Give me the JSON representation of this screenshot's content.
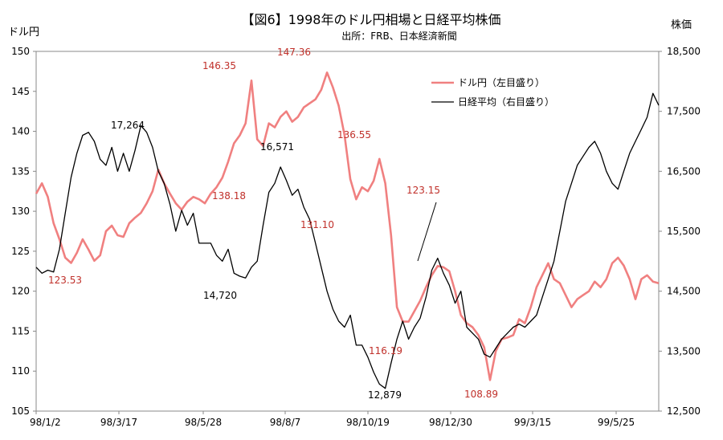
{
  "chart_data": {
    "type": "line",
    "title": "【図6】1998年のドル円相場と日経平均株価",
    "subtitle": "出所：FRB、日本経済新聞",
    "ylabel_left": "ドル円",
    "ylabel_right": "株価",
    "ylim_left": [
      105,
      150
    ],
    "ylim_right": [
      12500,
      18500
    ],
    "yticks_left": [
      "105",
      "110",
      "115",
      "120",
      "125",
      "130",
      "135",
      "140",
      "145",
      "150"
    ],
    "yticks_right": [
      "12,500",
      "13,500",
      "14,500",
      "15,500",
      "16,500",
      "17,500",
      "18,500"
    ],
    "x_ticks": [
      "98/1/2",
      "98/3/17",
      "98/5/28",
      "98/8/7",
      "98/10/19",
      "98/12/30",
      "99/3/15",
      "99/5/25"
    ],
    "grid": false,
    "legend_position": "top-right",
    "series": [
      {
        "name": "ドル円（左目盛り）",
        "axis": "left",
        "color": "#f08080",
        "values": [
          132.2,
          133.5,
          131.8,
          128.5,
          126.5,
          124.2,
          123.53,
          124.8,
          126.5,
          125.2,
          123.8,
          124.5,
          127.5,
          128.2,
          127.0,
          126.8,
          128.5,
          129.2,
          129.8,
          131.0,
          132.5,
          135.2,
          133.5,
          132.2,
          131.0,
          130.2,
          131.2,
          131.8,
          131.5,
          131.0,
          132.2,
          133.0,
          134.2,
          136.2,
          138.5,
          139.5,
          141.0,
          146.35,
          139.0,
          138.18,
          141.0,
          140.5,
          141.8,
          142.5,
          141.2,
          141.8,
          143.0,
          143.5,
          144.0,
          145.2,
          147.36,
          145.5,
          143.2,
          139.5,
          134.0,
          131.5,
          133.0,
          132.5,
          133.8,
          136.55,
          133.5,
          127.0,
          118.0,
          116.2,
          116.19,
          117.5,
          118.8,
          120.5,
          122.0,
          123.15,
          123.0,
          122.5,
          120.0,
          117.0,
          116.0,
          115.5,
          114.5,
          113.0,
          108.89,
          112.5,
          114.0,
          114.2,
          114.5,
          116.5,
          116.0,
          118.0,
          120.5,
          122.0,
          123.5,
          121.5,
          121.0,
          119.5,
          118.0,
          119.0,
          119.5,
          120.0,
          121.2,
          120.5,
          121.5,
          123.5,
          124.2,
          123.2,
          121.5,
          119.0,
          121.5,
          122.0,
          121.2,
          121.0
        ]
      },
      {
        "name": "日経平均（右目盛り）",
        "axis": "right",
        "color": "#000000",
        "values": [
          14900,
          14800,
          14850,
          14820,
          15200,
          15800,
          16400,
          16800,
          17100,
          17150,
          17000,
          16700,
          16600,
          16900,
          16500,
          16800,
          16500,
          16850,
          17264,
          17150,
          16900,
          16500,
          16300,
          15950,
          15500,
          15850,
          15600,
          15800,
          15300,
          15300,
          15300,
          15100,
          15000,
          15200,
          14800,
          14750,
          14720,
          14900,
          15000,
          15600,
          16150,
          16300,
          16571,
          16350,
          16100,
          16200,
          15900,
          15700,
          15300,
          14900,
          14500,
          14200,
          14000,
          13900,
          14100,
          13600,
          13600,
          13400,
          13150,
          12950,
          12879,
          13300,
          13700,
          14000,
          13700,
          13900,
          14050,
          14400,
          14850,
          15050,
          14800,
          14600,
          14300,
          14500,
          13900,
          13800,
          13700,
          13450,
          13400,
          13550,
          13700,
          13800,
          13900,
          13950,
          13900,
          14000,
          14100,
          14400,
          14700,
          15000,
          15500,
          16000,
          16300,
          16600,
          16750,
          16900,
          17000,
          16800,
          16500,
          16300,
          16200,
          16500,
          16800,
          17000,
          17200,
          17400,
          17800,
          17600
        ]
      }
    ],
    "annotations": [
      {
        "text": "123.53",
        "series": "usdjpy",
        "color": "red"
      },
      {
        "text": "146.35",
        "series": "usdjpy",
        "color": "red"
      },
      {
        "text": "138.18",
        "series": "usdjpy",
        "color": "red"
      },
      {
        "text": "147.36",
        "series": "usdjpy",
        "color": "red"
      },
      {
        "text": "131.10",
        "series": "usdjpy",
        "color": "red"
      },
      {
        "text": "136.55",
        "series": "usdjpy",
        "color": "red"
      },
      {
        "text": "116.19",
        "series": "usdjpy",
        "color": "red"
      },
      {
        "text": "123.15",
        "series": "usdjpy",
        "color": "red"
      },
      {
        "text": "108.89",
        "series": "usdjpy",
        "color": "red"
      },
      {
        "text": "17,264",
        "series": "nikkei",
        "color": "black"
      },
      {
        "text": "14,720",
        "series": "nikkei",
        "color": "black"
      },
      {
        "text": "16,571",
        "series": "nikkei",
        "color": "black"
      },
      {
        "text": "12,879",
        "series": "nikkei",
        "color": "black"
      }
    ]
  }
}
